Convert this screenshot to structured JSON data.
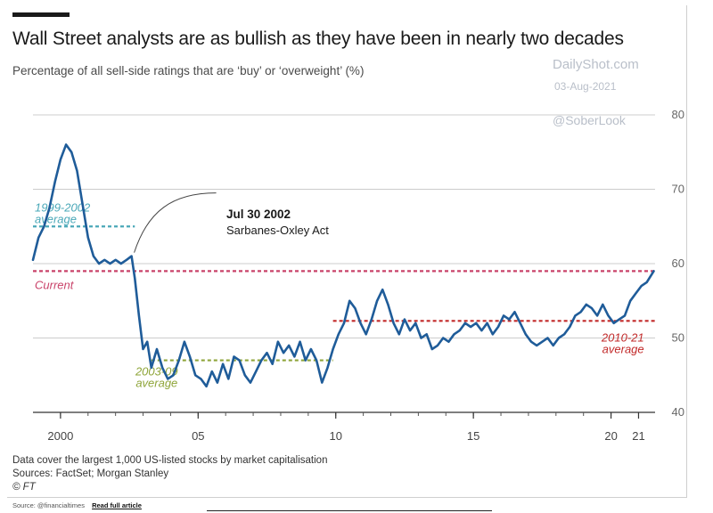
{
  "chart_data": {
    "type": "line",
    "title": "Wall Street analysts are as bullish as they have been in nearly two decades",
    "subtitle": "Percentage of all sell-side ratings that are ‘buy’ or ‘overweight’ (%)",
    "x_tick_labels": [
      "2000",
      "05",
      "10",
      "15",
      "20",
      "21"
    ],
    "x_ticks": [
      2000,
      2005,
      2010,
      2015,
      2020,
      2021
    ],
    "xlim": [
      1999,
      2021.6
    ],
    "y_ticks": [
      40,
      50,
      60,
      70,
      80
    ],
    "ylim": [
      40,
      80
    ],
    "y_axis_side": "right",
    "grid": "horizontal",
    "series": [
      {
        "color": "#1f5c99",
        "x": [
          1999.0,
          1999.2,
          1999.4,
          1999.6,
          1999.8,
          2000.0,
          2000.2,
          2000.4,
          2000.6,
          2000.8,
          2001.0,
          2001.2,
          2001.4,
          2001.6,
          2001.8,
          2002.0,
          2002.2,
          2002.4,
          2002.58,
          2002.7,
          2002.85,
          2003.0,
          2003.15,
          2003.3,
          2003.5,
          2003.7,
          2003.9,
          2004.1,
          2004.3,
          2004.5,
          2004.7,
          2004.9,
          2005.1,
          2005.3,
          2005.5,
          2005.7,
          2005.9,
          2006.1,
          2006.3,
          2006.5,
          2006.7,
          2006.9,
          2007.1,
          2007.3,
          2007.5,
          2007.7,
          2007.9,
          2008.1,
          2008.3,
          2008.5,
          2008.7,
          2008.9,
          2009.1,
          2009.3,
          2009.5,
          2009.7,
          2009.9,
          2010.1,
          2010.3,
          2010.5,
          2010.7,
          2010.9,
          2011.1,
          2011.3,
          2011.5,
          2011.7,
          2011.9,
          2012.1,
          2012.3,
          2012.5,
          2012.7,
          2012.9,
          2013.1,
          2013.3,
          2013.5,
          2013.7,
          2013.9,
          2014.1,
          2014.3,
          2014.5,
          2014.7,
          2014.9,
          2015.1,
          2015.3,
          2015.5,
          2015.7,
          2015.9,
          2016.1,
          2016.3,
          2016.5,
          2016.7,
          2016.9,
          2017.1,
          2017.3,
          2017.5,
          2017.7,
          2017.9,
          2018.1,
          2018.3,
          2018.5,
          2018.7,
          2018.9,
          2019.1,
          2019.3,
          2019.5,
          2019.7,
          2019.9,
          2020.1,
          2020.3,
          2020.5,
          2020.7,
          2020.9,
          2021.1,
          2021.3,
          2021.55
        ],
        "values": [
          60.5,
          63.5,
          65.0,
          67.5,
          71.0,
          74.0,
          76.0,
          75.0,
          72.5,
          68.0,
          63.5,
          61.0,
          60.0,
          60.5,
          60.0,
          60.5,
          60.0,
          60.5,
          61.0,
          58.0,
          53.0,
          48.5,
          49.5,
          46.0,
          48.5,
          46.0,
          44.5,
          45.0,
          47.0,
          49.5,
          47.5,
          45.0,
          44.5,
          43.5,
          45.5,
          44.0,
          46.5,
          44.5,
          47.5,
          47.0,
          45.0,
          44.0,
          45.5,
          47.0,
          48.0,
          46.5,
          49.5,
          48.0,
          49.0,
          47.5,
          49.5,
          47.0,
          48.5,
          47.0,
          44.0,
          46.0,
          48.5,
          50.5,
          52.0,
          55.0,
          54.0,
          52.0,
          50.5,
          52.5,
          55.0,
          56.5,
          54.5,
          52.0,
          50.5,
          52.5,
          51.0,
          52.0,
          50.0,
          50.5,
          48.5,
          49.0,
          50.0,
          49.5,
          50.5,
          51.0,
          52.0,
          51.5,
          52.0,
          51.0,
          52.0,
          50.5,
          51.5,
          53.0,
          52.5,
          53.5,
          52.0,
          50.5,
          49.5,
          49.0,
          49.5,
          50.0,
          49.0,
          50.0,
          50.5,
          51.5,
          53.0,
          53.5,
          54.5,
          54.0,
          53.0,
          54.5,
          53.0,
          52.0,
          52.5,
          53.0,
          55.0,
          56.0,
          57.0,
          57.5,
          59.0
        ]
      }
    ],
    "reference_lines": [
      {
        "label": "1999-2002 average",
        "label_lines": [
          "1999-2002",
          "average"
        ],
        "value": 65.0,
        "x_range": [
          1999,
          2002.7
        ],
        "color": "#4aa8b8"
      },
      {
        "label": "Current",
        "label_lines": [
          "Current"
        ],
        "value": 59.0,
        "x_range": [
          1999,
          2021.6
        ],
        "color": "#c9436a"
      },
      {
        "label": "2003-09 average",
        "label_lines": [
          "2003-09",
          "average"
        ],
        "value": 47.0,
        "x_range": [
          2003.3,
          2009.9
        ],
        "color": "#8fa53a"
      },
      {
        "label": "2010-21 average",
        "label_lines": [
          "2010-21",
          "average"
        ],
        "value": 52.3,
        "x_range": [
          2009.9,
          2021.6
        ],
        "color": "#c22a2a"
      }
    ],
    "annotations": [
      {
        "label": "Jul 30 2002",
        "detail": "Sarbanes-Oxley Act",
        "x": 2002.58,
        "y": 61.0
      }
    ]
  },
  "watermark": {
    "site": "DailyShot.com",
    "date": "03-Aug-2021",
    "handle": "@SoberLook"
  },
  "footer": {
    "note": "Data cover the largest 1,000 US-listed stocks by market capitalisation",
    "sources": "Sources: FactSet; Morgan Stanley",
    "brand": "© FT"
  },
  "source_line": {
    "credit": "Source: @financialtimes",
    "link": "Read full article"
  },
  "colors": {
    "series": "#1f5c99",
    "grid": "#cccccc",
    "axis_text": "#666666"
  }
}
